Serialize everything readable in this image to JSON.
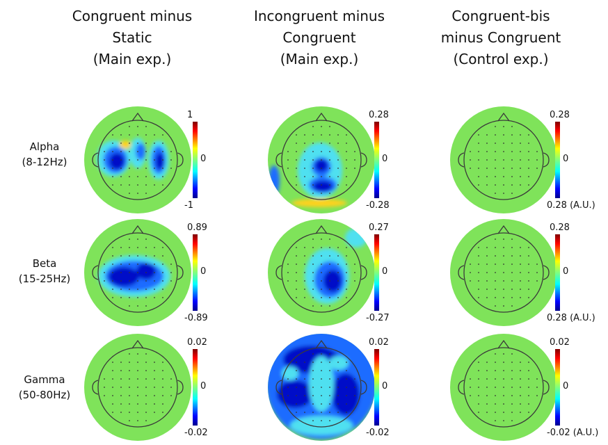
{
  "columns": [
    {
      "title_lines": [
        "Congruent minus",
        "Static",
        "(Main exp.)"
      ]
    },
    {
      "title_lines": [
        "Incongruent minus",
        "Congruent",
        "(Main exp.)"
      ]
    },
    {
      "title_lines": [
        "Congruent-bis",
        "minus Congruent",
        "(Control exp.)"
      ]
    }
  ],
  "rows": [
    {
      "label_lines": [
        "Alpha",
        "(8-12Hz)"
      ]
    },
    {
      "label_lines": [
        "Beta",
        "(15-25Hz)"
      ]
    },
    {
      "label_lines": [
        "Gamma",
        "(50-80Hz)"
      ]
    }
  ],
  "colorbars": [
    [
      {
        "top": "1",
        "mid": "0",
        "bot": "-1"
      },
      {
        "top": "0.28",
        "mid": "0",
        "bot": "-0.28"
      },
      {
        "top": "0.28",
        "mid": "0",
        "bot": "0.28 (A.U.)"
      }
    ],
    [
      {
        "top": "0.89",
        "mid": "0",
        "bot": "-0.89"
      },
      {
        "top": "0.27",
        "mid": "0",
        "bot": "-0.27"
      },
      {
        "top": "0.28",
        "mid": "0",
        "bot": "0.28 (A.U.)"
      }
    ],
    [
      {
        "top": "0.02",
        "mid": "0",
        "bot": "-0.02"
      },
      {
        "top": "0.02",
        "mid": "0",
        "bot": "-0.02"
      },
      {
        "top": "0.02",
        "mid": "0",
        "bot": "-0.02 (A.U.)"
      }
    ]
  ],
  "colors": {
    "background_field": "#7fe35a",
    "negative_strong": "#0010c8",
    "negative_mid": "#1e6cff",
    "negative_light": "#4fe0f0",
    "positive": "#ffd21e",
    "head_outline": "#3a3a3a"
  }
}
